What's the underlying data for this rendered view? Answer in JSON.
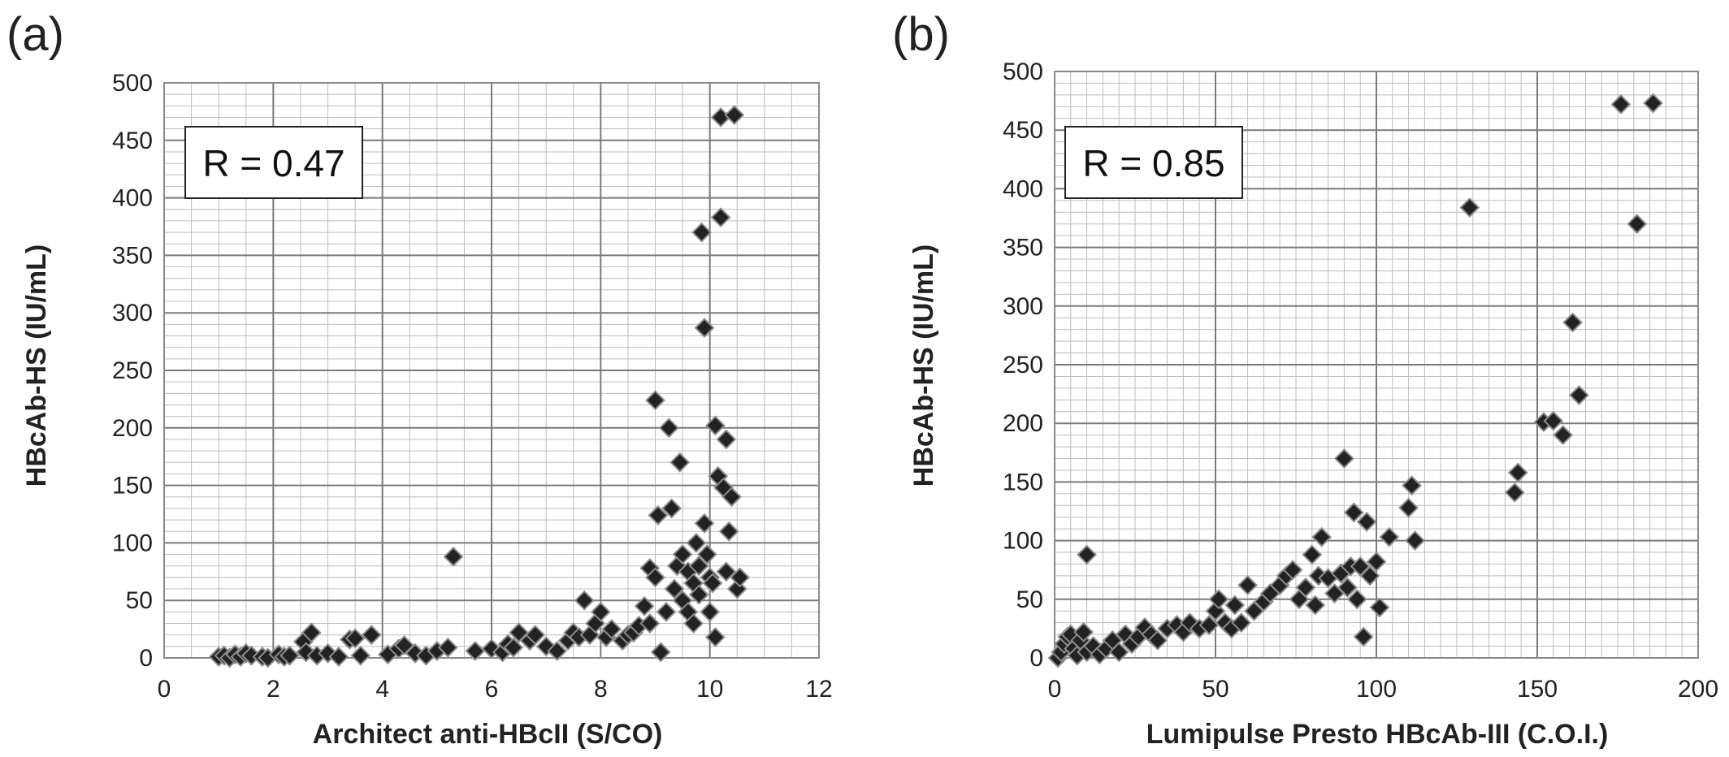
{
  "chart_data": [
    {
      "panel_label": "(a)",
      "type": "scatter",
      "xlabel": "Architect anti-HBcII (S/CO)",
      "ylabel": "HBcAb-HS (IU/mL)",
      "xlim": [
        0,
        12
      ],
      "ylim": [
        0,
        500
      ],
      "x_ticks": [
        0,
        2,
        4,
        6,
        8,
        10,
        12
      ],
      "y_ticks": [
        0,
        50,
        100,
        150,
        200,
        250,
        300,
        350,
        400,
        450,
        500
      ],
      "grid": true,
      "marker": "diamond",
      "marker_color": "#222222",
      "annotation": "R = 0.47",
      "points": [
        [
          1.0,
          1
        ],
        [
          1.1,
          2
        ],
        [
          1.2,
          0
        ],
        [
          1.3,
          3
        ],
        [
          1.4,
          1
        ],
        [
          1.5,
          4
        ],
        [
          1.6,
          2
        ],
        [
          1.8,
          1
        ],
        [
          1.9,
          0
        ],
        [
          2.1,
          3
        ],
        [
          2.2,
          1
        ],
        [
          2.3,
          2
        ],
        [
          2.55,
          14
        ],
        [
          2.7,
          22
        ],
        [
          2.6,
          5
        ],
        [
          2.8,
          2
        ],
        [
          3.0,
          4
        ],
        [
          3.2,
          1
        ],
        [
          3.4,
          16
        ],
        [
          3.5,
          17
        ],
        [
          3.6,
          2
        ],
        [
          3.8,
          20
        ],
        [
          4.1,
          3
        ],
        [
          4.3,
          8
        ],
        [
          4.4,
          11
        ],
        [
          4.6,
          4
        ],
        [
          4.8,
          2
        ],
        [
          5.0,
          6
        ],
        [
          5.2,
          9
        ],
        [
          5.3,
          88
        ],
        [
          5.7,
          6
        ],
        [
          6.0,
          8
        ],
        [
          6.2,
          5
        ],
        [
          6.3,
          12
        ],
        [
          6.4,
          9
        ],
        [
          6.5,
          22
        ],
        [
          6.7,
          15
        ],
        [
          6.8,
          20
        ],
        [
          7.0,
          10
        ],
        [
          7.2,
          6
        ],
        [
          7.4,
          15
        ],
        [
          7.5,
          22
        ],
        [
          7.6,
          18
        ],
        [
          7.7,
          50
        ],
        [
          7.8,
          20
        ],
        [
          7.9,
          30
        ],
        [
          8.0,
          40
        ],
        [
          8.1,
          18
        ],
        [
          8.2,
          25
        ],
        [
          8.4,
          15
        ],
        [
          8.5,
          20
        ],
        [
          8.6,
          22
        ],
        [
          8.7,
          28
        ],
        [
          8.8,
          45
        ],
        [
          8.9,
          30
        ],
        [
          8.9,
          78
        ],
        [
          9.0,
          70
        ],
        [
          9.0,
          224
        ],
        [
          9.05,
          124
        ],
        [
          9.1,
          5
        ],
        [
          9.2,
          40
        ],
        [
          9.25,
          200
        ],
        [
          9.3,
          130
        ],
        [
          9.35,
          60
        ],
        [
          9.4,
          80
        ],
        [
          9.45,
          170
        ],
        [
          9.5,
          50
        ],
        [
          9.5,
          90
        ],
        [
          9.6,
          40
        ],
        [
          9.6,
          75
        ],
        [
          9.7,
          65
        ],
        [
          9.7,
          30
        ],
        [
          9.75,
          100
        ],
        [
          9.8,
          55
        ],
        [
          9.8,
          80
        ],
        [
          9.85,
          370
        ],
        [
          9.9,
          287
        ],
        [
          9.9,
          117
        ],
        [
          9.95,
          90
        ],
        [
          10.0,
          70
        ],
        [
          10.0,
          40
        ],
        [
          10.05,
          65
        ],
        [
          10.1,
          202
        ],
        [
          10.1,
          18
        ],
        [
          10.15,
          158
        ],
        [
          10.2,
          383
        ],
        [
          10.2,
          470
        ],
        [
          10.25,
          148
        ],
        [
          10.3,
          190
        ],
        [
          10.3,
          75
        ],
        [
          10.35,
          110
        ],
        [
          10.4,
          140
        ],
        [
          10.45,
          472
        ],
        [
          10.5,
          60
        ],
        [
          10.55,
          70
        ]
      ]
    },
    {
      "panel_label": "(b)",
      "type": "scatter",
      "xlabel": "Lumipulse Presto HBcAb-III (C.O.I.)",
      "ylabel": "HBcAb-HS (IU/mL)",
      "xlim": [
        0,
        200
      ],
      "ylim": [
        0,
        500
      ],
      "x_ticks": [
        0,
        50,
        100,
        150,
        200
      ],
      "y_ticks": [
        0,
        50,
        100,
        150,
        200,
        250,
        300,
        350,
        400,
        450,
        500
      ],
      "grid": true,
      "marker": "diamond",
      "marker_color": "#222222",
      "annotation": "R = 0.85",
      "points": [
        [
          1,
          0
        ],
        [
          2,
          5
        ],
        [
          3,
          12
        ],
        [
          4,
          18
        ],
        [
          5,
          20
        ],
        [
          6,
          8
        ],
        [
          7,
          2
        ],
        [
          8,
          15
        ],
        [
          9,
          22
        ],
        [
          10,
          5
        ],
        [
          10,
          88
        ],
        [
          12,
          10
        ],
        [
          14,
          3
        ],
        [
          16,
          8
        ],
        [
          18,
          15
        ],
        [
          20,
          5
        ],
        [
          22,
          20
        ],
        [
          24,
          12
        ],
        [
          26,
          18
        ],
        [
          28,
          26
        ],
        [
          30,
          20
        ],
        [
          32,
          15
        ],
        [
          35,
          25
        ],
        [
          38,
          28
        ],
        [
          40,
          22
        ],
        [
          42,
          30
        ],
        [
          45,
          25
        ],
        [
          48,
          28
        ],
        [
          50,
          40
        ],
        [
          51,
          50
        ],
        [
          53,
          30
        ],
        [
          55,
          25
        ],
        [
          56,
          45
        ],
        [
          58,
          30
        ],
        [
          60,
          62
        ],
        [
          62,
          40
        ],
        [
          65,
          48
        ],
        [
          67,
          55
        ],
        [
          70,
          62
        ],
        [
          72,
          70
        ],
        [
          74,
          75
        ],
        [
          76,
          50
        ],
        [
          78,
          60
        ],
        [
          80,
          88
        ],
        [
          81,
          45
        ],
        [
          82,
          70
        ],
        [
          83,
          103
        ],
        [
          85,
          68
        ],
        [
          87,
          55
        ],
        [
          89,
          72
        ],
        [
          90,
          170
        ],
        [
          91,
          60
        ],
        [
          92,
          78
        ],
        [
          93,
          124
        ],
        [
          94,
          50
        ],
        [
          95,
          78
        ],
        [
          96,
          18
        ],
        [
          97,
          116
        ],
        [
          98,
          70
        ],
        [
          100,
          82
        ],
        [
          101,
          43
        ],
        [
          104,
          103
        ],
        [
          110,
          128
        ],
        [
          111,
          147
        ],
        [
          112,
          100
        ],
        [
          129,
          384
        ],
        [
          143,
          141
        ],
        [
          144,
          158
        ],
        [
          152,
          201
        ],
        [
          155,
          202
        ],
        [
          158,
          190
        ],
        [
          161,
          286
        ],
        [
          163,
          224
        ],
        [
          176,
          472
        ],
        [
          181,
          370
        ],
        [
          186,
          473
        ]
      ]
    }
  ]
}
